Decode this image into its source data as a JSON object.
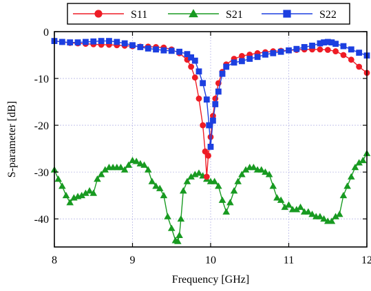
{
  "chart_data": {
    "type": "line",
    "xlabel": "Frequency [GHz]",
    "ylabel": "S-parameter [dB]",
    "xlim": [
      8,
      12
    ],
    "ylim": [
      -46,
      0
    ],
    "xticks": [
      8,
      9,
      10,
      11,
      12
    ],
    "yticks": [
      0,
      -10,
      -20,
      -30,
      -40
    ],
    "xtick_labels": [
      "8",
      "9",
      "10",
      "11",
      "12"
    ],
    "ytick_labels": [
      "0",
      "-10",
      "-20",
      "-30",
      "-40"
    ],
    "grid": true,
    "legend_position": "top",
    "series": [
      {
        "name": "S11",
        "color": "#ee1c25",
        "marker": "circle",
        "x": [
          8.0,
          8.1,
          8.2,
          8.3,
          8.4,
          8.5,
          8.6,
          8.7,
          8.8,
          8.9,
          9.0,
          9.1,
          9.2,
          9.3,
          9.4,
          9.5,
          9.6,
          9.7,
          9.75,
          9.8,
          9.85,
          9.9,
          9.93,
          9.95,
          9.97,
          10.0,
          10.03,
          10.06,
          10.1,
          10.15,
          10.2,
          10.3,
          10.4,
          10.5,
          10.6,
          10.7,
          10.8,
          10.9,
          11.0,
          11.1,
          11.2,
          11.3,
          11.4,
          11.5,
          11.6,
          11.7,
          11.8,
          11.9,
          12.0
        ],
        "y": [
          -2.0,
          -2.2,
          -2.4,
          -2.5,
          -2.6,
          -2.7,
          -2.8,
          -2.8,
          -2.9,
          -3.0,
          -3.1,
          -3.2,
          -3.2,
          -3.3,
          -3.4,
          -3.8,
          -4.6,
          -6.0,
          -7.5,
          -9.8,
          -14.3,
          -20.0,
          -25.6,
          -31.0,
          -26.5,
          -22.5,
          -18.0,
          -14.3,
          -11.0,
          -8.6,
          -7.0,
          -5.8,
          -5.2,
          -4.9,
          -4.6,
          -4.4,
          -4.2,
          -4.1,
          -4.0,
          -3.9,
          -3.8,
          -3.8,
          -3.8,
          -3.9,
          -4.2,
          -5.0,
          -6.0,
          -7.5,
          -8.8
        ]
      },
      {
        "name": "S21",
        "color": "#189a21",
        "marker": "triangle",
        "x": [
          8.0,
          8.05,
          8.1,
          8.15,
          8.2,
          8.25,
          8.3,
          8.35,
          8.4,
          8.45,
          8.5,
          8.55,
          8.6,
          8.65,
          8.7,
          8.75,
          8.8,
          8.85,
          8.9,
          8.95,
          9.0,
          9.05,
          9.1,
          9.15,
          9.2,
          9.25,
          9.3,
          9.35,
          9.4,
          9.45,
          9.5,
          9.55,
          9.58,
          9.6,
          9.62,
          9.65,
          9.7,
          9.75,
          9.8,
          9.85,
          9.9,
          9.95,
          10.0,
          10.05,
          10.1,
          10.15,
          10.2,
          10.25,
          10.3,
          10.35,
          10.4,
          10.45,
          10.5,
          10.55,
          10.6,
          10.65,
          10.7,
          10.75,
          10.8,
          10.85,
          10.9,
          10.95,
          11.0,
          11.05,
          11.1,
          11.15,
          11.2,
          11.25,
          11.3,
          11.35,
          11.4,
          11.45,
          11.5,
          11.55,
          11.6,
          11.65,
          11.7,
          11.75,
          11.8,
          11.85,
          11.9,
          11.95,
          12.0
        ],
        "y": [
          -29.5,
          -31.5,
          -33.0,
          -35.0,
          -36.5,
          -35.5,
          -35.2,
          -35.0,
          -34.5,
          -34.0,
          -34.5,
          -31.5,
          -30.5,
          -29.5,
          -29.0,
          -29.0,
          -29.0,
          -29.0,
          -29.5,
          -28.5,
          -27.5,
          -27.7,
          -28.2,
          -28.5,
          -29.5,
          -32.0,
          -33.0,
          -33.5,
          -35.0,
          -39.5,
          -42.0,
          -44.6,
          -44.8,
          -43.5,
          -40.0,
          -34.0,
          -32.0,
          -31.0,
          -30.5,
          -30.2,
          -30.8,
          -31.5,
          -32.0,
          -32.0,
          -33.0,
          -36.0,
          -38.5,
          -36.5,
          -34.0,
          -32.0,
          -30.5,
          -29.5,
          -29.0,
          -29.0,
          -29.5,
          -29.5,
          -30.0,
          -30.5,
          -33.0,
          -35.5,
          -36.0,
          -37.5,
          -37.0,
          -38.0,
          -38.0,
          -37.5,
          -38.5,
          -38.5,
          -39.0,
          -39.5,
          -39.5,
          -40.0,
          -40.5,
          -40.5,
          -39.5,
          -39.0,
          -35.0,
          -33.0,
          -31.0,
          -29.0,
          -28.0,
          -27.5,
          -26.0
        ]
      },
      {
        "name": "S22",
        "color": "#1c3fe0",
        "marker": "square",
        "x": [
          8.0,
          8.1,
          8.2,
          8.3,
          8.4,
          8.5,
          8.6,
          8.7,
          8.8,
          8.9,
          9.0,
          9.1,
          9.2,
          9.3,
          9.4,
          9.5,
          9.6,
          9.7,
          9.75,
          9.8,
          9.85,
          9.9,
          9.95,
          9.98,
          10.0,
          10.03,
          10.06,
          10.1,
          10.15,
          10.2,
          10.3,
          10.4,
          10.5,
          10.6,
          10.7,
          10.8,
          10.9,
          11.0,
          11.1,
          11.2,
          11.3,
          11.4,
          11.45,
          11.5,
          11.55,
          11.6,
          11.7,
          11.8,
          11.9,
          12.0
        ],
        "y": [
          -2.0,
          -2.2,
          -2.3,
          -2.3,
          -2.2,
          -2.1,
          -2.0,
          -2.0,
          -2.2,
          -2.5,
          -2.9,
          -3.3,
          -3.6,
          -3.8,
          -4.0,
          -4.1,
          -4.3,
          -4.8,
          -5.5,
          -6.2,
          -8.5,
          -11.0,
          -14.5,
          -20.0,
          -24.6,
          -19.0,
          -15.5,
          -12.8,
          -9.0,
          -7.5,
          -6.6,
          -6.3,
          -5.8,
          -5.4,
          -4.9,
          -4.6,
          -4.3,
          -4.0,
          -3.7,
          -3.3,
          -3.0,
          -2.5,
          -2.3,
          -2.2,
          -2.3,
          -2.6,
          -3.1,
          -3.8,
          -4.5,
          -5.1
        ]
      }
    ]
  }
}
